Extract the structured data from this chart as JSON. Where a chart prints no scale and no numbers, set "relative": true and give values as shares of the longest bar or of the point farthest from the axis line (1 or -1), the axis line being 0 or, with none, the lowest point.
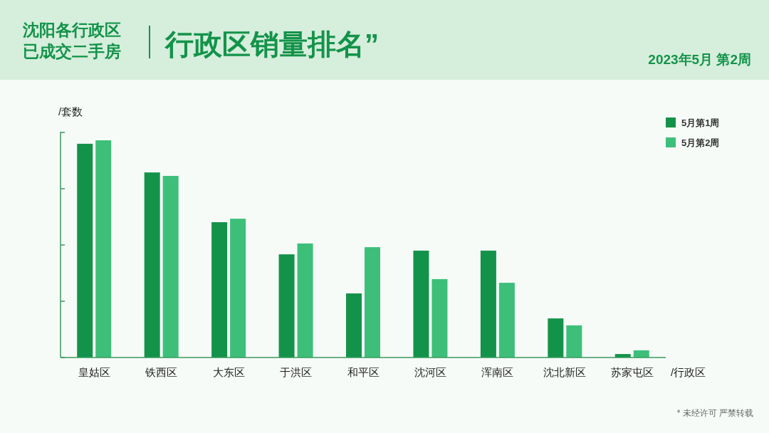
{
  "chart_data": {
    "type": "bar",
    "title": "行政区销量排名”",
    "subtitle": "2023年5月 第2周",
    "ylabel": "/套数",
    "xlabel": "/行政区",
    "categories": [
      "皇姑区",
      "铁西区",
      "大东区",
      "于洪区",
      "和平区",
      "沈河区",
      "浑南区",
      "沈北新区",
      "苏家屯区"
    ],
    "relative": true,
    "series": [
      {
        "name": "5月第1周",
        "color": "#13934a",
        "values": [
          0.984,
          0.852,
          0.623,
          0.475,
          0.295,
          0.492,
          0.492,
          0.18,
          0.016
        ]
      },
      {
        "name": "5月第2周",
        "color": "#3dbf7a",
        "values": [
          1,
          0.836,
          0.639,
          0.525,
          0.508,
          0.361,
          0.344,
          0.148,
          0.033
        ]
      }
    ],
    "legend": "top right",
    "grid": false,
    "annotations": [
      "沈阳各行政区",
      "已成交二手房",
      "* 未经许可 严禁转载"
    ]
  }
}
